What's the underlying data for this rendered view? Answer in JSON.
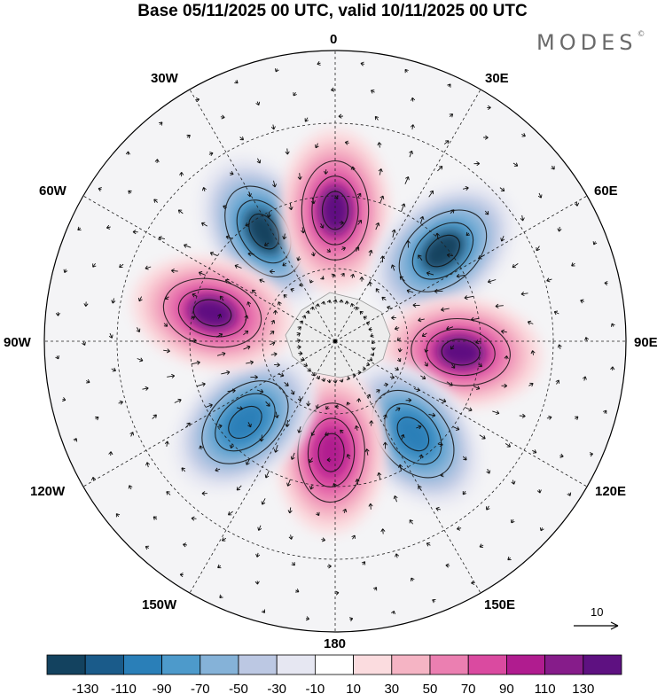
{
  "title": "Base 05/11/2025 00 UTC, valid 10/11/2025 00 UTC",
  "brand": "MODES",
  "brand_mark": "©",
  "longitudes": {
    "lon_0": "0",
    "lon_30e": "30E",
    "lon_60e": "60E",
    "lon_90e": "90E",
    "lon_120e": "120E",
    "lon_150e": "150E",
    "lon_180": "180",
    "lon_150w": "150W",
    "lon_120w": "120W",
    "lon_90w": "90W",
    "lon_60w": "60W",
    "lon_30w": "30W"
  },
  "reference_vector": {
    "label": "10",
    "value": 10
  },
  "colorbar": {
    "colors": [
      "#13425f",
      "#1a5b8a",
      "#2a7fb8",
      "#4d9acb",
      "#85b2d8",
      "#bcc8e3",
      "#e6e7f2",
      "#ffffff",
      "#fbdcdf",
      "#f5b4c4",
      "#eb7fb1",
      "#da4aa0",
      "#b01c8f",
      "#861c8a",
      "#5e1181"
    ],
    "labels": [
      "-130",
      "-110",
      "-90",
      "-70",
      "-50",
      "-30",
      "-10",
      "10",
      "30",
      "50",
      "70",
      "90",
      "110",
      "130"
    ]
  },
  "anomaly_centres": [
    {
      "lon": 327,
      "colat": 27,
      "sign": "low",
      "color": "#13425f"
    },
    {
      "lon": 0,
      "colat": 27,
      "sign": "high",
      "color": "#5e1181"
    },
    {
      "lon": 50,
      "colat": 29,
      "sign": "low",
      "color": "#13425f"
    },
    {
      "lon": 95,
      "colat": 26,
      "sign": "high",
      "color": "#5e1181"
    },
    {
      "lon": 140,
      "colat": 25,
      "sign": "low",
      "color": "#2a7fb8"
    },
    {
      "lon": 182,
      "colat": 23,
      "sign": "high",
      "color": "#b01c8f"
    },
    {
      "lon": 228,
      "colat": 25,
      "sign": "low",
      "color": "#2a7fb8"
    },
    {
      "lon": 283,
      "colat": 26,
      "sign": "high",
      "color": "#5e1181"
    }
  ]
}
